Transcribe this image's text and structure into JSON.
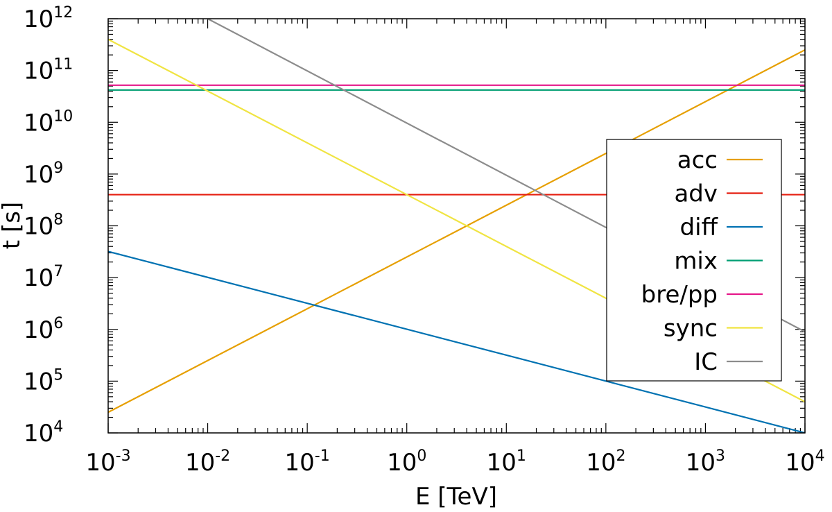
{
  "chart_data": {
    "type": "line",
    "title": "",
    "xlabel": "E [TeV]",
    "ylabel": "t [s]",
    "xscale": "log",
    "yscale": "log",
    "xlim": [
      0.001,
      10000
    ],
    "ylim": [
      10000,
      1000000000000
    ],
    "grid": false,
    "legend_position": "right",
    "x_ticks": [
      {
        "value": 0.001,
        "base": "10",
        "exp": "-3"
      },
      {
        "value": 0.01,
        "base": "10",
        "exp": "-2"
      },
      {
        "value": 0.1,
        "base": "10",
        "exp": "-1"
      },
      {
        "value": 1,
        "base": "10",
        "exp": "0"
      },
      {
        "value": 10,
        "base": "10",
        "exp": "1"
      },
      {
        "value": 100,
        "base": "10",
        "exp": "2"
      },
      {
        "value": 1000,
        "base": "10",
        "exp": "3"
      },
      {
        "value": 10000,
        "base": "10",
        "exp": "4"
      }
    ],
    "y_ticks": [
      {
        "value": 10000,
        "base": "10",
        "exp": "4"
      },
      {
        "value": 100000,
        "base": "10",
        "exp": "5"
      },
      {
        "value": 1000000,
        "base": "10",
        "exp": "6"
      },
      {
        "value": 10000000,
        "base": "10",
        "exp": "7"
      },
      {
        "value": 100000000,
        "base": "10",
        "exp": "8"
      },
      {
        "value": 1000000000,
        "base": "10",
        "exp": "9"
      },
      {
        "value": 10000000000,
        "base": "10",
        "exp": "10"
      },
      {
        "value": 100000000000,
        "base": "10",
        "exp": "11"
      },
      {
        "value": 1000000000000,
        "base": "10",
        "exp": "12"
      }
    ],
    "series": [
      {
        "name": "acc",
        "color": "#e69f00",
        "x": [
          0.001,
          10000
        ],
        "y": [
          25000,
          250000000000
        ]
      },
      {
        "name": "adv",
        "color": "#e51e10",
        "x": [
          0.001,
          10000
        ],
        "y": [
          400000000,
          400000000
        ]
      },
      {
        "name": "diff",
        "color": "#0072b2",
        "x": [
          0.001,
          10000
        ],
        "y": [
          32000000,
          10000
        ]
      },
      {
        "name": "mix",
        "color": "#009e73",
        "x": [
          0.001,
          10000
        ],
        "y": [
          42000000000,
          42000000000
        ]
      },
      {
        "name": "bre/pp",
        "color": "#e5178a",
        "x": [
          0.001,
          10000
        ],
        "y": [
          52000000000,
          52000000000
        ]
      },
      {
        "name": "sync",
        "color": "#f0e442",
        "x": [
          0.001,
          10000
        ],
        "y": [
          400000000000,
          40000
        ]
      },
      {
        "name": "IC",
        "color": "#8c8c8c",
        "x": [
          0.01,
          10000
        ],
        "y": [
          1000000000000,
          900000
        ]
      }
    ]
  }
}
